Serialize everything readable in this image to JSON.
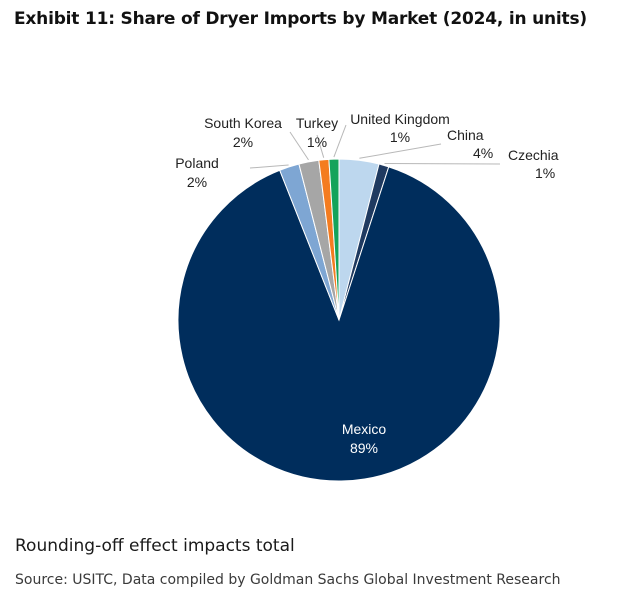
{
  "header": {
    "title": "Exhibit 11: Share of Dryer Imports by Market (2024, in units)"
  },
  "chart_data": {
    "type": "pie",
    "title": "Exhibit 11: Share of Dryer Imports by Market (2024, in units)",
    "start": "12 o'clock, clockwise",
    "slices": [
      {
        "name": "China",
        "value": 4,
        "label": "4%",
        "color": "#bdd7ee"
      },
      {
        "name": "Czechia",
        "value": 1,
        "label": "1%",
        "color": "#1f3a60"
      },
      {
        "name": "Mexico",
        "value": 89,
        "label": "89%",
        "color": "#002d5c"
      },
      {
        "name": "Poland",
        "value": 2,
        "label": "2%",
        "color": "#7ea6d3"
      },
      {
        "name": "South Korea",
        "value": 2,
        "label": "2%",
        "color": "#a6a6a6"
      },
      {
        "name": "Turkey",
        "value": 1,
        "label": "1%",
        "color": "#f47c20"
      },
      {
        "name": "United Kingdom",
        "value": 1,
        "label": "1%",
        "color": "#14a35a"
      }
    ]
  },
  "footer": {
    "note": "Rounding-off effect impacts total",
    "source": "Source: USITC, Data compiled by Goldman Sachs Global Investment Research"
  }
}
